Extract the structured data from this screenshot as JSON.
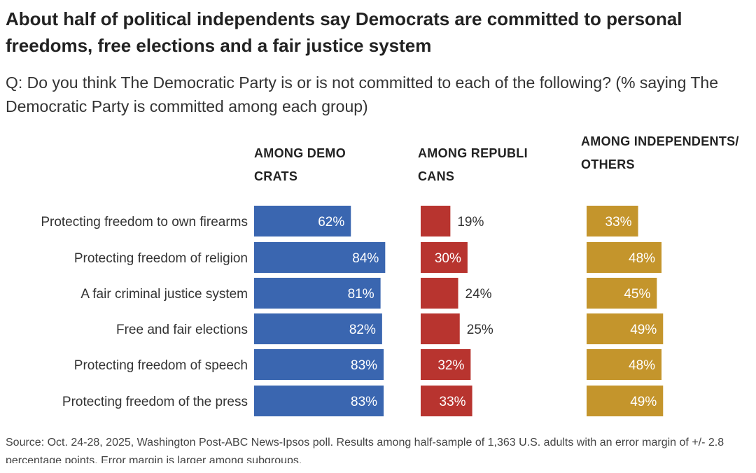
{
  "title": "About half of political independents say Democrats are committed to personal freedoms, free elections and a fair justice system",
  "subtitle": "Q: Do you think The Democratic Party is or is not committed to each of the following? (% saying The Democratic Party is committed among each group)",
  "source": "Source: Oct. 24-28, 2025, Washington Post-ABC News-Ipsos poll. Results among half-sample of 1,363 U.S. adults with an error margin of +/- 2.8 percentage points. Error margin is larger among subgroups.",
  "chart_data": {
    "type": "bar",
    "orientation": "horizontal",
    "categories": [
      "Protecting freedom to own firearms",
      "Protecting freedom of religion",
      "A fair criminal justice system",
      "Free and fair elections",
      "Protecting freedom of speech",
      "Protecting freedom of the press"
    ],
    "series": [
      {
        "name": "AMONG DEMOCRATS",
        "color": "#3a66b0",
        "values": [
          62,
          84,
          81,
          82,
          83,
          83
        ]
      },
      {
        "name": "AMONG REPUBLICANS",
        "color": "#b8342f",
        "values": [
          19,
          30,
          24,
          25,
          32,
          33
        ]
      },
      {
        "name": "AMONG INDEPENDENTS/OTHERS",
        "color": "#c4952c",
        "values": [
          33,
          48,
          45,
          49,
          48,
          49
        ]
      }
    ],
    "value_suffix": "%",
    "grid": false
  }
}
